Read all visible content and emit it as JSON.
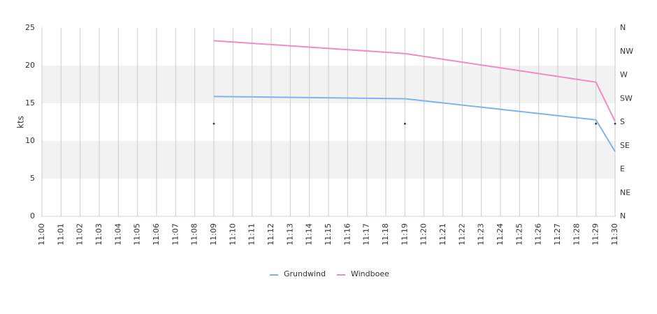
{
  "chart_data": {
    "type": "line",
    "y_label": "kts",
    "xticks": [
      "11:00",
      "11:01",
      "11:02",
      "11:03",
      "11:04",
      "11:05",
      "11:06",
      "11:07",
      "11:08",
      "11:09",
      "11:10",
      "11:11",
      "11:12",
      "11:13",
      "11:14",
      "11:15",
      "11:16",
      "11:17",
      "11:18",
      "11:19",
      "11:20",
      "11:21",
      "11:22",
      "11:23",
      "11:24",
      "11:25",
      "11:26",
      "11:27",
      "11:28",
      "11:29",
      "11:30"
    ],
    "ylim": [
      0,
      25
    ],
    "yticks": [
      0,
      5,
      10,
      15,
      20,
      25
    ],
    "y2lim": [
      0,
      360
    ],
    "y2ticks": [
      {
        "value": 0,
        "label": "N"
      },
      {
        "value": 45,
        "label": "NE"
      },
      {
        "value": 90,
        "label": "E"
      },
      {
        "value": 135,
        "label": "SE"
      },
      {
        "value": 180,
        "label": "S"
      },
      {
        "value": 225,
        "label": "SW"
      },
      {
        "value": 270,
        "label": "W"
      },
      {
        "value": 315,
        "label": "NW"
      },
      {
        "value": 360,
        "label": "N"
      }
    ],
    "bands": true,
    "series": [
      {
        "name": "Grundwind",
        "color": "#7cb5ec",
        "x": [
          "11:09",
          "11:19",
          "11:29",
          "11:30"
        ],
        "values": [
          15.9,
          15.6,
          12.8,
          8.6
        ]
      },
      {
        "name": "Windboee",
        "color": "#f08cbf",
        "x": [
          "11:09",
          "11:19",
          "11:29",
          "11:30"
        ],
        "values": [
          23.3,
          21.6,
          17.8,
          12.6
        ]
      }
    ],
    "direction": {
      "color": "#000000",
      "axis": "y2",
      "x": [
        "11:09",
        "11:19",
        "11:29",
        "11:30"
      ],
      "values": [
        177,
        177,
        177,
        177
      ]
    }
  }
}
